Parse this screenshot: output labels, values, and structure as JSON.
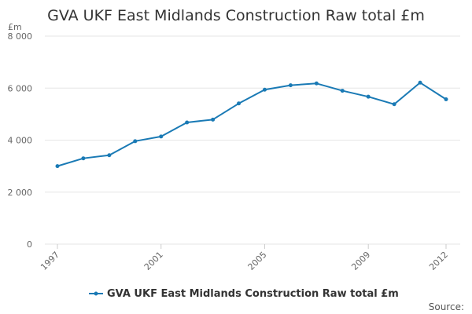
{
  "chart_data": {
    "type": "line",
    "title": "GVA UKF East Midlands Construction Raw total £m",
    "ylabel": "£m",
    "xlabel": "",
    "x": [
      1997,
      1998,
      1999,
      2000,
      2001,
      2002,
      2003,
      2004,
      2005,
      2006,
      2007,
      2008,
      2009,
      2010,
      2011,
      2012
    ],
    "x_tick_labels": [
      "1997",
      "2001",
      "2005",
      "2009",
      "2012"
    ],
    "y_tick_labels": [
      "0",
      "2 000",
      "4 000",
      "6 000",
      "8 000"
    ],
    "y_ticks": [
      0,
      2000,
      4000,
      6000,
      8000
    ],
    "ylim": [
      0,
      8000
    ],
    "xlim": [
      1997,
      2012
    ],
    "series": [
      {
        "name": "GVA UKF East Midlands Construction Raw total £m",
        "color": "#1a7ab5",
        "values": [
          3000,
          3300,
          3420,
          3960,
          4140,
          4680,
          4790,
          5410,
          5940,
          6110,
          6180,
          5900,
          5670,
          5380,
          6210,
          5570
        ]
      }
    ],
    "grid": true,
    "legend_position": "bottom"
  },
  "source_label": "Source:"
}
